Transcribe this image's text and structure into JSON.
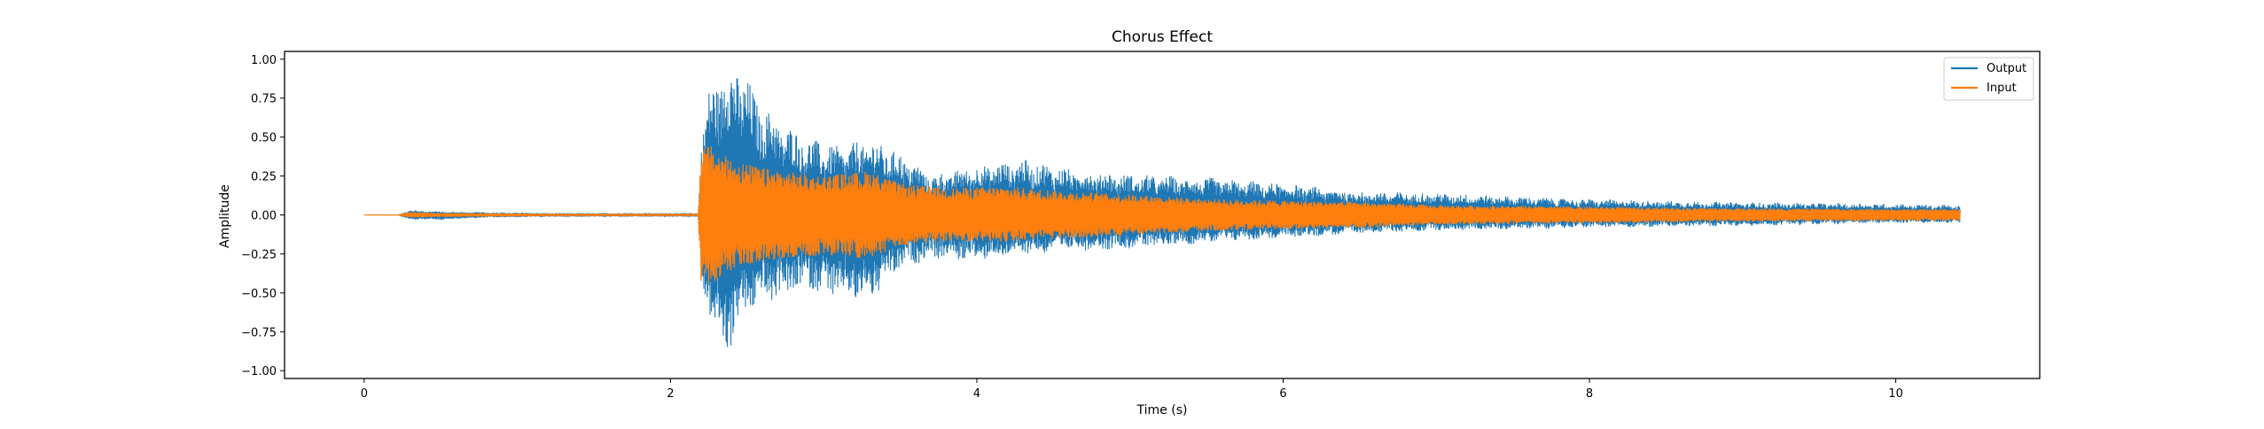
{
  "colors": {
    "output": "#1f77b4",
    "input": "#ff7f0e",
    "axis": "#000000",
    "background": "#ffffff"
  },
  "chart_data": {
    "type": "line",
    "title": "Chorus Effect",
    "xlabel": "Time (s)",
    "ylabel": "Amplitude",
    "xlim": [
      -0.52,
      10.94
    ],
    "ylim": [
      -1.05,
      1.05
    ],
    "xticks": [
      0,
      2,
      4,
      6,
      8,
      10
    ],
    "yticks": [
      -1.0,
      -0.75,
      -0.5,
      -0.25,
      0.0,
      0.25,
      0.5,
      0.75,
      1.0
    ],
    "xtick_labels": [
      "0",
      "2",
      "4",
      "6",
      "8",
      "10"
    ],
    "ytick_labels": [
      "−1.00",
      "−0.75",
      "−0.50",
      "−0.25",
      "0.00",
      "0.25",
      "0.50",
      "0.75",
      "1.00"
    ],
    "grid": false,
    "legend_position": "top-right",
    "signal_duration": 10.42,
    "series": [
      {
        "name": "Output",
        "color": "#1f77b4",
        "envelope": {
          "t": [
            0,
            0.22,
            0.3,
            0.5,
            0.8,
            1.2,
            2.18,
            2.2,
            2.25,
            2.3,
            2.35,
            2.4,
            2.45,
            2.55,
            2.7,
            2.9,
            3.1,
            3.3,
            3.5,
            3.7,
            4.0,
            4.3,
            4.6,
            5.0,
            5.5,
            6.0,
            6.5,
            7.0,
            8.0,
            9.0,
            10.0,
            10.42
          ],
          "pos": [
            0,
            0,
            0.03,
            0.02,
            0.015,
            0.01,
            0.01,
            0.48,
            0.8,
            0.92,
            1.0,
            0.96,
            1.0,
            0.78,
            0.62,
            0.5,
            0.44,
            0.5,
            0.4,
            0.26,
            0.32,
            0.36,
            0.3,
            0.26,
            0.24,
            0.2,
            0.15,
            0.14,
            0.1,
            0.08,
            0.07,
            0.06
          ],
          "neg": [
            0,
            0,
            -0.03,
            -0.03,
            -0.015,
            -0.01,
            -0.01,
            -0.5,
            -0.62,
            -0.82,
            -0.93,
            -0.84,
            -0.72,
            -0.6,
            -0.55,
            -0.48,
            -0.55,
            -0.57,
            -0.35,
            -0.28,
            -0.3,
            -0.26,
            -0.23,
            -0.22,
            -0.18,
            -0.15,
            -0.12,
            -0.1,
            -0.08,
            -0.07,
            -0.05,
            -0.05
          ]
        }
      },
      {
        "name": "Input",
        "color": "#ff7f0e",
        "envelope": {
          "t": [
            0,
            0.22,
            0.3,
            0.5,
            0.8,
            1.2,
            2.18,
            2.2,
            2.25,
            2.35,
            2.45,
            2.6,
            2.8,
            3.0,
            3.3,
            3.5,
            3.8,
            4.2,
            4.6,
            5.0,
            5.5,
            6.0,
            6.5,
            7.0,
            8.0,
            9.0,
            10.0,
            10.42
          ],
          "pos": [
            0,
            0,
            0.015,
            0.01,
            0.008,
            0.005,
            0.005,
            0.42,
            0.45,
            0.38,
            0.34,
            0.3,
            0.27,
            0.25,
            0.28,
            0.2,
            0.17,
            0.18,
            0.15,
            0.13,
            0.1,
            0.09,
            0.08,
            0.06,
            0.05,
            0.04,
            0.035,
            0.035
          ],
          "neg": [
            0,
            0,
            -0.015,
            -0.01,
            -0.008,
            -0.005,
            -0.005,
            -0.44,
            -0.45,
            -0.38,
            -0.34,
            -0.3,
            -0.27,
            -0.26,
            -0.28,
            -0.2,
            -0.17,
            -0.17,
            -0.15,
            -0.13,
            -0.1,
            -0.09,
            -0.08,
            -0.06,
            -0.05,
            -0.04,
            -0.035,
            -0.035
          ]
        }
      }
    ]
  }
}
